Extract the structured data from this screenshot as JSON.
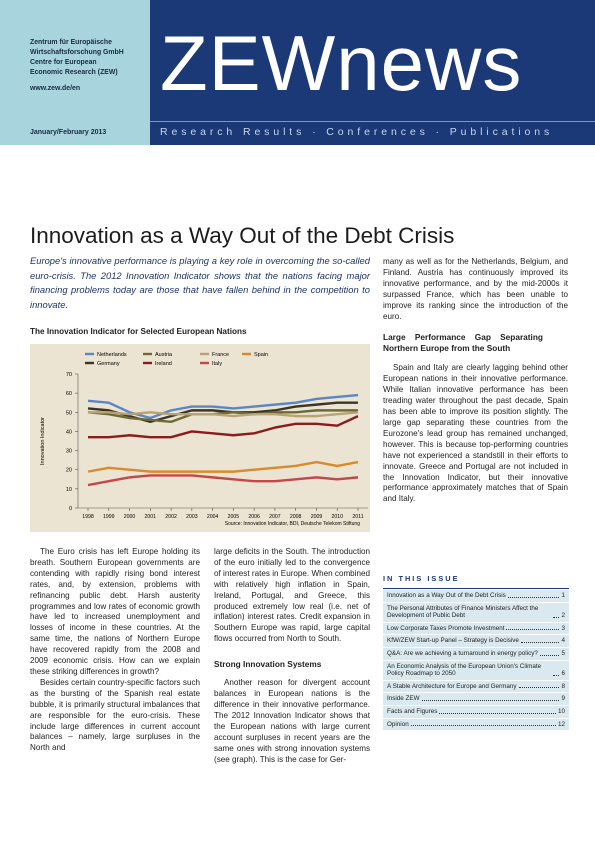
{
  "header": {
    "org_lines": [
      "Zentrum für Europäische",
      "Wirtschaftsforschung GmbH",
      "Centre for European",
      "Economic Research (ZEW)"
    ],
    "url": "www.zew.de/en",
    "date": "January/February 2013",
    "masthead": "ZEWnews",
    "tagline": "Research Results · Conferences · Publications"
  },
  "article": {
    "title": "Innovation as a Way Out of the Debt Crisis",
    "intro": "Europe's innovative performance is playing a key role in overcoming the so-called euro-crisis. The 2012 Innovation Indicator shows that the nations facing major financing problems today are those that have fallen behind in the competition to innovate.",
    "chart": {
      "type": "line",
      "title": "The Innovation Indicator for Selected European Nations",
      "y_label": "Innovation Indicator",
      "source": "Source: Innovation Indicator, BDI, Deutsche Telekom Stiftung",
      "categories": [
        "1998",
        "1999",
        "2000",
        "2001",
        "2002",
        "2003",
        "2004",
        "2005",
        "2006",
        "2007",
        "2008",
        "2009",
        "2010",
        "2011"
      ],
      "ylim": [
        0,
        70
      ],
      "yticks": [
        0,
        10,
        20,
        30,
        40,
        50,
        60,
        70
      ],
      "series": [
        {
          "name": "Netherlands",
          "color": "#5b86c6",
          "values": [
            56,
            55,
            50,
            47,
            51,
            53,
            53,
            52,
            53,
            54,
            55,
            57,
            58,
            59
          ]
        },
        {
          "name": "Germany",
          "color": "#3d3428",
          "values": [
            52,
            51,
            48,
            45,
            48,
            51,
            51,
            50,
            50,
            51,
            53,
            54,
            55,
            55
          ]
        },
        {
          "name": "Austria",
          "color": "#6d6a34",
          "values": [
            50,
            49,
            47,
            46,
            45,
            49,
            49,
            50,
            49,
            50,
            50,
            51,
            51,
            51
          ]
        },
        {
          "name": "Ireland",
          "color": "#8b1c1c",
          "values": [
            37,
            37,
            38,
            37,
            37,
            40,
            39,
            38,
            39,
            42,
            44,
            44,
            43,
            48
          ]
        },
        {
          "name": "France",
          "color": "#b9a274",
          "values": [
            50,
            50,
            49,
            50,
            49,
            49,
            49,
            48,
            49,
            49,
            48,
            48,
            49,
            50
          ]
        },
        {
          "name": "Spain",
          "color": "#d98a2a",
          "values": [
            19,
            21,
            20,
            19,
            19,
            19,
            19,
            19,
            20,
            21,
            22,
            24,
            22,
            24
          ]
        },
        {
          "name": "Italy",
          "color": "#c4474a",
          "values": [
            12,
            14,
            16,
            17,
            17,
            17,
            16,
            15,
            14,
            14,
            15,
            16,
            15,
            16
          ]
        }
      ]
    },
    "col1": [
      "The Euro crisis has left Europe holding its breath. Southern European governments are contending with rapidly rising bond interest rates, and, by extension, problems with refinancing public debt. Harsh austerity programmes and low rates of economic growth have led to increased unemployment and losses of income in these countries. At the same time, the nations of Northern Europe have recovered rapidly from the 2008 and 2009 economic crisis. How can we explain these striking differences in growth?",
      "Besides certain country-specific factors such as the bursting of the Spanish real estate bubble, it is primarily structural imbalances that are responsible for the euro-crisis. These include large differences in current account balances – namely, large surpluses in the North and"
    ],
    "col2": [
      "large deficits in the South. The introduction of the euro initially led to the convergence of interest rates in Europe. When combined with relatively high inflation in Spain, Ireland, Portugal, and Greece, this produced extremely low real (i.e. net of inflation) interest rates. Credit expansion in Southern Europe was rapid, large capital flows occurred from North to South."
    ],
    "heading1": "Strong Innovation Systems",
    "col2b": "Another reason for divergent account balances in European nations is the difference in their innovative performance. The 2012 Innovation Indicator shows that the European nations with large current account surpluses in recent years are the same ones with strong innovation systems (see graph). This is the case for Ger-",
    "col3": "many as well as for the Netherlands, Belgium, and Finland. Austria has continuously improved its innovative performance, and by the mid-2000s it surpassed France, which has been unable to improve its ranking since the introduction of the euro.",
    "heading2": "Large Performance Gap Separating Northern Europe from the South",
    "col3b": "Spain and Italy are clearly lagging behind other European nations in their innovative performance. While Italian innovative performance has been treading water throughout the past decade, Spain has been able to improve its position slightly. The large gap separating these countries from the Eurozone's lead group has remained unchanged, however. This is because top-performing countries have not experienced a standstill in their efforts to innovate. Greece and Portugal are not included in the Innovation Indicator, but their innovative performance approximately matches that of Spain and Italy."
  },
  "issue": {
    "heading": "IN THIS ISSUE",
    "items": [
      {
        "title": "Innovation as a Way Out of the Debt Crisis",
        "page": 1
      },
      {
        "title": "The Personal Attributes of Finance Ministers Affect the Development of Public Debt",
        "page": 2
      },
      {
        "title": "Low Corporate Taxes Promote Investment",
        "page": 3
      },
      {
        "title": "KfW/ZEW Start-up Panel – Strategy is Decisive",
        "page": 4
      },
      {
        "title": "Q&A: Are we achieving a turnaround in energy policy?",
        "page": 5
      },
      {
        "title": "An Economic Analysis of the European Union's Climate Policy Roadmap to 2050",
        "page": 6
      },
      {
        "title": "A Stable Architecture for Europe and Germany",
        "page": 8
      },
      {
        "title": "Inside ZEW",
        "page": 9
      },
      {
        "title": "Facts and Figures",
        "page": 10
      },
      {
        "title": "Opinion",
        "page": 12
      }
    ]
  }
}
